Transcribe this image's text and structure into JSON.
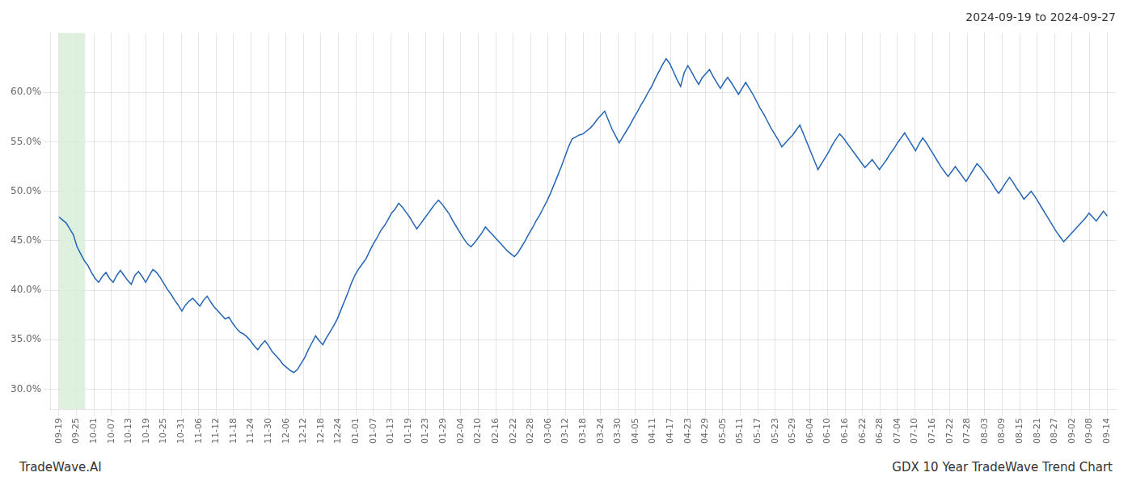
{
  "chart_data": {
    "type": "line",
    "title": "2024-09-19 to 2024-09-27",
    "annotations": [
      "TradeWave.AI",
      "GDX 10 Year TradeWave Trend Chart"
    ],
    "color": "#2464b4",
    "grid": true,
    "band": {
      "from": 0.0,
      "to": 1.5,
      "color": "#d8edd8"
    },
    "xlim": [
      -0.5,
      60.5
    ],
    "xticks": [
      {
        "value": 0,
        "label": "09-19"
      },
      {
        "value": 1,
        "label": "09-25"
      },
      {
        "value": 2,
        "label": "10-01"
      },
      {
        "value": 3,
        "label": "10-07"
      },
      {
        "value": 4,
        "label": "10-13"
      },
      {
        "value": 5,
        "label": "10-19"
      },
      {
        "value": 6,
        "label": "10-25"
      },
      {
        "value": 7,
        "label": "10-31"
      },
      {
        "value": 8,
        "label": "11-06"
      },
      {
        "value": 9,
        "label": "11-12"
      },
      {
        "value": 10,
        "label": "11-18"
      },
      {
        "value": 11,
        "label": "11-24"
      },
      {
        "value": 12,
        "label": "11-30"
      },
      {
        "value": 13,
        "label": "12-06"
      },
      {
        "value": 14,
        "label": "12-12"
      },
      {
        "value": 15,
        "label": "12-18"
      },
      {
        "value": 16,
        "label": "12-24"
      },
      {
        "value": 17,
        "label": "01-01"
      },
      {
        "value": 18,
        "label": "01-07"
      },
      {
        "value": 19,
        "label": "01-13"
      },
      {
        "value": 20,
        "label": "01-19"
      },
      {
        "value": 21,
        "label": "01-23"
      },
      {
        "value": 22,
        "label": "01-29"
      },
      {
        "value": 23,
        "label": "02-04"
      },
      {
        "value": 24,
        "label": "02-10"
      },
      {
        "value": 25,
        "label": "02-16"
      },
      {
        "value": 26,
        "label": "02-22"
      },
      {
        "value": 27,
        "label": "02-28"
      },
      {
        "value": 28,
        "label": "03-06"
      },
      {
        "value": 29,
        "label": "03-12"
      },
      {
        "value": 30,
        "label": "03-18"
      },
      {
        "value": 31,
        "label": "03-24"
      },
      {
        "value": 32,
        "label": "03-30"
      },
      {
        "value": 33,
        "label": "04-05"
      },
      {
        "value": 34,
        "label": "04-11"
      },
      {
        "value": 35,
        "label": "04-17"
      },
      {
        "value": 36,
        "label": "04-23"
      },
      {
        "value": 37,
        "label": "04-29"
      },
      {
        "value": 38,
        "label": "05-05"
      },
      {
        "value": 39,
        "label": "05-11"
      },
      {
        "value": 40,
        "label": "05-17"
      },
      {
        "value": 41,
        "label": "05-23"
      },
      {
        "value": 42,
        "label": "05-29"
      },
      {
        "value": 43,
        "label": "06-04"
      },
      {
        "value": 44,
        "label": "06-10"
      },
      {
        "value": 45,
        "label": "06-16"
      },
      {
        "value": 46,
        "label": "06-22"
      },
      {
        "value": 47,
        "label": "06-28"
      },
      {
        "value": 48,
        "label": "07-04"
      },
      {
        "value": 49,
        "label": "07-10"
      },
      {
        "value": 50,
        "label": "07-16"
      },
      {
        "value": 51,
        "label": "07-22"
      },
      {
        "value": 52,
        "label": "07-28"
      },
      {
        "value": 53,
        "label": "08-03"
      },
      {
        "value": 54,
        "label": "08-09"
      },
      {
        "value": 55,
        "label": "08-15"
      },
      {
        "value": 56,
        "label": "08-21"
      },
      {
        "value": 57,
        "label": "08-27"
      },
      {
        "value": 58,
        "label": "09-02"
      },
      {
        "value": 59,
        "label": "09-08"
      },
      {
        "value": 60,
        "label": "09-14"
      }
    ],
    "ylim": [
      0.28,
      0.66
    ],
    "yticks": [
      {
        "value": 0.3,
        "label": "30.0%"
      },
      {
        "value": 0.35,
        "label": "35.0%"
      },
      {
        "value": 0.4,
        "label": "40.0%"
      },
      {
        "value": 0.45,
        "label": "45.0%"
      },
      {
        "value": 0.5,
        "label": "50.0%"
      },
      {
        "value": 0.55,
        "label": "55.0%"
      },
      {
        "value": 0.6,
        "label": "60.0%"
      }
    ],
    "values": [
      0.474,
      0.471,
      0.468,
      0.462,
      0.456,
      0.444,
      0.437,
      0.43,
      0.425,
      0.418,
      0.412,
      0.408,
      0.414,
      0.418,
      0.412,
      0.408,
      0.415,
      0.42,
      0.415,
      0.41,
      0.406,
      0.415,
      0.419,
      0.414,
      0.408,
      0.415,
      0.421,
      0.418,
      0.413,
      0.407,
      0.401,
      0.396,
      0.39,
      0.385,
      0.379,
      0.385,
      0.389,
      0.392,
      0.388,
      0.384,
      0.39,
      0.394,
      0.388,
      0.383,
      0.379,
      0.375,
      0.371,
      0.373,
      0.367,
      0.362,
      0.358,
      0.356,
      0.353,
      0.349,
      0.344,
      0.34,
      0.345,
      0.349,
      0.344,
      0.338,
      0.334,
      0.33,
      0.325,
      0.322,
      0.319,
      0.317,
      0.32,
      0.326,
      0.332,
      0.34,
      0.347,
      0.354,
      0.349,
      0.345,
      0.352,
      0.358,
      0.364,
      0.371,
      0.38,
      0.389,
      0.398,
      0.408,
      0.416,
      0.422,
      0.427,
      0.432,
      0.44,
      0.447,
      0.453,
      0.46,
      0.465,
      0.471,
      0.478,
      0.482,
      0.488,
      0.484,
      0.479,
      0.474,
      0.468,
      0.462,
      0.467,
      0.472,
      0.477,
      0.482,
      0.487,
      0.491,
      0.487,
      0.482,
      0.477,
      0.47,
      0.464,
      0.458,
      0.452,
      0.447,
      0.444,
      0.448,
      0.453,
      0.458,
      0.464,
      0.46,
      0.456,
      0.452,
      0.448,
      0.444,
      0.44,
      0.437,
      0.434,
      0.438,
      0.444,
      0.45,
      0.457,
      0.463,
      0.47,
      0.476,
      0.483,
      0.49,
      0.498,
      0.507,
      0.516,
      0.525,
      0.535,
      0.545,
      0.553,
      0.555,
      0.557,
      0.558,
      0.561,
      0.564,
      0.568,
      0.573,
      0.577,
      0.581,
      0.572,
      0.563,
      0.556,
      0.549,
      0.555,
      0.561,
      0.567,
      0.574,
      0.58,
      0.587,
      0.593,
      0.6,
      0.606,
      0.614,
      0.621,
      0.628,
      0.634,
      0.629,
      0.621,
      0.613,
      0.606,
      0.62,
      0.627,
      0.621,
      0.614,
      0.608,
      0.615,
      0.619,
      0.623,
      0.616,
      0.61,
      0.604,
      0.61,
      0.615,
      0.61,
      0.604,
      0.598,
      0.604,
      0.61,
      0.604,
      0.598,
      0.591,
      0.584,
      0.578,
      0.571,
      0.564,
      0.558,
      0.552,
      0.545,
      0.549,
      0.553,
      0.557,
      0.562,
      0.567,
      0.558,
      0.549,
      0.54,
      0.531,
      0.522,
      0.528,
      0.534,
      0.54,
      0.547,
      0.553,
      0.558,
      0.554,
      0.549,
      0.544,
      0.539,
      0.534,
      0.529,
      0.524,
      0.528,
      0.532,
      0.527,
      0.522,
      0.527,
      0.532,
      0.538,
      0.543,
      0.549,
      0.554,
      0.559,
      0.553,
      0.547,
      0.541,
      0.548,
      0.554,
      0.549,
      0.543,
      0.537,
      0.531,
      0.525,
      0.52,
      0.515,
      0.52,
      0.525,
      0.52,
      0.515,
      0.51,
      0.516,
      0.522,
      0.528,
      0.524,
      0.519,
      0.514,
      0.509,
      0.503,
      0.498,
      0.503,
      0.509,
      0.514,
      0.509,
      0.503,
      0.498,
      0.492,
      0.496,
      0.5,
      0.495,
      0.489,
      0.483,
      0.477,
      0.471,
      0.465,
      0.459,
      0.454,
      0.449,
      0.453,
      0.457,
      0.461,
      0.465,
      0.469,
      0.473,
      0.478,
      0.474,
      0.47,
      0.475,
      0.48,
      0.475
    ]
  }
}
